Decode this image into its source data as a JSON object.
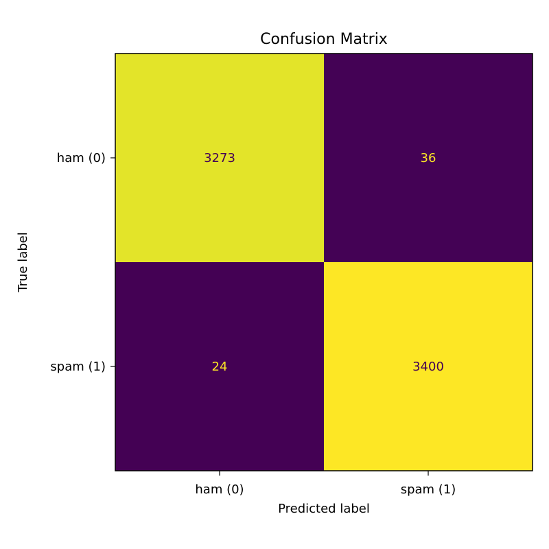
{
  "chart_data": {
    "type": "heatmap",
    "title": "Confusion Matrix",
    "xlabel": "Predicted label",
    "ylabel": "True label",
    "x_categories": [
      "ham (0)",
      "spam (1)"
    ],
    "y_categories": [
      "ham (0)",
      "spam (1)"
    ],
    "values": [
      [
        3273,
        36
      ],
      [
        24,
        3400
      ]
    ],
    "colormap": "viridis",
    "colors": {
      "low": "#440154",
      "high": "#fde725",
      "text_on_dark": "#fde725",
      "text_on_light": "#440154"
    },
    "grid": false,
    "colorbar": false
  }
}
